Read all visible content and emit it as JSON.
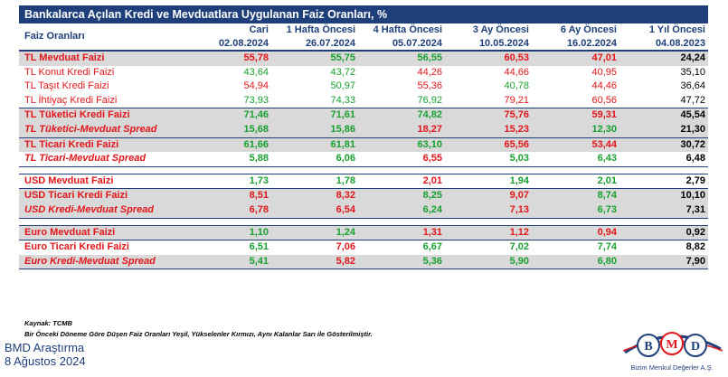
{
  "title": "Bankalarca Açılan Kredi ve Mevduatlara Uygulanan Faiz Oranları, %",
  "header": {
    "row_label": "Faiz Oranları",
    "columns": [
      {
        "label": "Cari",
        "date": "02.08.2024"
      },
      {
        "label": "1 Hafta Öncesi",
        "date": "26.07.2024"
      },
      {
        "label": "4 Hafta Öncesi",
        "date": "05.07.2024"
      },
      {
        "label": "3 Ay Öncesi",
        "date": "10.05.2024"
      },
      {
        "label": "6 Ay Öncesi",
        "date": "16.02.2024"
      },
      {
        "label": "1 Yıl Öncesi",
        "date": "04.08.2023"
      }
    ]
  },
  "colors": {
    "green": "#18a02f",
    "red": "#e2161b",
    "yellow": "#a8a800",
    "navy": "#1f3f7a",
    "gray": "#d9d9d9"
  },
  "rows": [
    {
      "label": "TL Mevduat Faizi",
      "values": [
        "55,78",
        "55,75",
        "56,55",
        "60,53",
        "47,01",
        "24,24"
      ],
      "colors": [
        "r",
        "g",
        "g",
        "r",
        "r",
        "k"
      ]
    },
    {
      "label": "TL Konut Kredi Faizi",
      "values": [
        "43,64",
        "43,72",
        "44,26",
        "44,66",
        "40,95",
        "35,10"
      ],
      "colors": [
        "g",
        "g",
        "r",
        "r",
        "r",
        "k"
      ]
    },
    {
      "label": "TL Taşıt Kredi Faizi",
      "values": [
        "54,94",
        "50,97",
        "55,36",
        "40,78",
        "44,46",
        "36,64"
      ],
      "colors": [
        "r",
        "g",
        "r",
        "g",
        "r",
        "k"
      ]
    },
    {
      "label": "TL İhtiyaç Kredi Faizi",
      "values": [
        "73,93",
        "74,33",
        "76,92",
        "79,21",
        "60,56",
        "47,72"
      ],
      "colors": [
        "g",
        "g",
        "g",
        "r",
        "r",
        "k"
      ]
    },
    {
      "label": "TL Tüketici Kredi Faizi",
      "values": [
        "71,46",
        "71,61",
        "74,82",
        "75,76",
        "59,31",
        "45,54"
      ],
      "colors": [
        "g",
        "g",
        "g",
        "r",
        "r",
        "k"
      ]
    },
    {
      "label": "TL Tüketici-Mevduat Spread",
      "values": [
        "15,68",
        "15,86",
        "18,27",
        "15,23",
        "12,30",
        "21,30"
      ],
      "colors": [
        "g",
        "g",
        "r",
        "r",
        "g",
        "k"
      ]
    },
    {
      "label": "TL Ticari Kredi Faizi",
      "values": [
        "61,66",
        "61,81",
        "63,10",
        "65,56",
        "53,44",
        "30,72"
      ],
      "colors": [
        "g",
        "g",
        "g",
        "r",
        "r",
        "k"
      ]
    },
    {
      "label": "TL Ticari-Mevduat Spread",
      "values": [
        "5,88",
        "6,06",
        "6,55",
        "5,03",
        "6,43",
        "6,48"
      ],
      "colors": [
        "g",
        "g",
        "r",
        "g",
        "g",
        "k"
      ]
    },
    {
      "label": "USD Mevduat Faizi",
      "values": [
        "1,73",
        "1,78",
        "2,01",
        "1,94",
        "2,01",
        "2,79"
      ],
      "colors": [
        "g",
        "g",
        "r",
        "g",
        "g",
        "k"
      ]
    },
    {
      "label": "USD Ticari Kredi Faizi",
      "values": [
        "8,51",
        "8,32",
        "8,25",
        "9,07",
        "8,74",
        "10,10"
      ],
      "colors": [
        "r",
        "r",
        "g",
        "r",
        "g",
        "k"
      ]
    },
    {
      "label": "USD Kredi-Mevduat Spread",
      "values": [
        "6,78",
        "6,54",
        "6,24",
        "7,13",
        "6,73",
        "7,31"
      ],
      "colors": [
        "r",
        "r",
        "g",
        "r",
        "g",
        "k"
      ]
    },
    {
      "label": "Euro Mevduat Faizi",
      "values": [
        "1,10",
        "1,24",
        "1,31",
        "1,12",
        "0,94",
        "0,92"
      ],
      "colors": [
        "g",
        "g",
        "r",
        "r",
        "r",
        "k"
      ]
    },
    {
      "label": "Euro Ticari Kredi Faizi",
      "values": [
        "6,51",
        "7,06",
        "6,67",
        "7,02",
        "7,74",
        "8,82"
      ],
      "colors": [
        "g",
        "r",
        "g",
        "g",
        "g",
        "k"
      ]
    },
    {
      "label": "Euro Kredi-Mevduat Spread",
      "values": [
        "5,41",
        "5,82",
        "5,36",
        "5,90",
        "6,80",
        "7,90"
      ],
      "colors": [
        "g",
        "r",
        "g",
        "g",
        "g",
        "k"
      ]
    }
  ],
  "notes": {
    "source": "Kaynak: TCMB",
    "legend": "Bir Önceki Döneme Göre Düşen Faiz Oranları Yeşil, Yükselenler Kırmızı, Aynı Kalanlar Sarı ile Gösterilmiştir."
  },
  "footer": {
    "line1": "BMD Araştırma",
    "line2": "8 Ağustos 2024"
  },
  "logo": {
    "letters": [
      "B",
      "M",
      "D"
    ],
    "tagline": "Bizim Menkul Değerler A.Ş."
  }
}
